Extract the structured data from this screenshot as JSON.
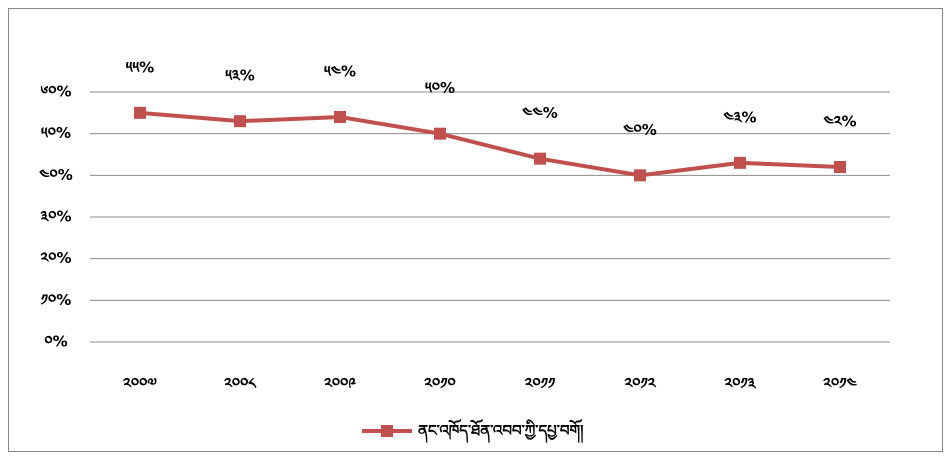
{
  "chart_data": {
    "type": "line",
    "categories": [
      "༢༠༠༧",
      "༢༠༠༨",
      "༢༠༠༩",
      "༢༠༡༠",
      "༢༠༡༡",
      "༢༠༡༢",
      "༢༠༡༣",
      "༢༠༡༤"
    ],
    "series": [
      {
        "name": "ནང་འཁོད་ཐོན་འབབ་ཀྱི་དཔྱ་བགོ།",
        "color": "#c0504d",
        "values": [
          55,
          53,
          54,
          50,
          44,
          40,
          43,
          42
        ],
        "value_labels": [
          "༥༥%",
          "༥༣%",
          "༥༤%",
          "༥༠%",
          "༤༤%",
          "༤༠%",
          "༤༣%",
          "༤༢%"
        ]
      }
    ],
    "ylim": [
      0,
      60
    ],
    "yticks": [
      {
        "value": 0,
        "label": "༠%"
      },
      {
        "value": 10,
        "label": "༡༠%"
      },
      {
        "value": 20,
        "label": "༢༠%"
      },
      {
        "value": 30,
        "label": "༣༠%"
      },
      {
        "value": 40,
        "label": "༤༠%"
      },
      {
        "value": 50,
        "label": "༥༠%"
      },
      {
        "value": 60,
        "label": "༦༠%"
      }
    ],
    "grid": true,
    "legend": "bottom"
  }
}
